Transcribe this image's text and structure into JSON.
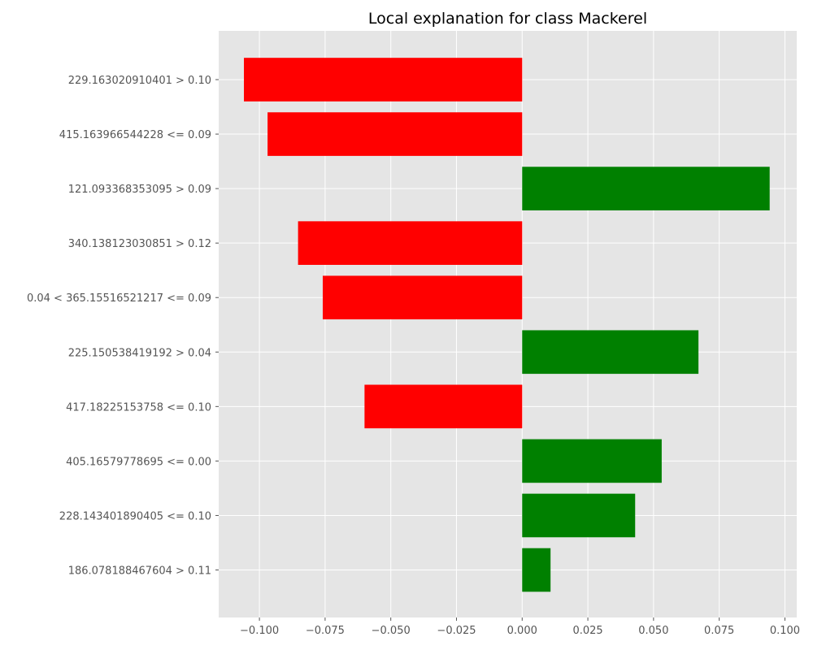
{
  "chart_data": {
    "type": "bar",
    "orientation": "horizontal",
    "title": "Local explanation for class Mackerel",
    "xlabel": "",
    "ylabel": "",
    "categories": [
      "229.163020910401 > 0.10",
      "415.163966544228 <= 0.09",
      "121.093368353095 > 0.09",
      "340.138123030851 > 0.12",
      "0.04 < 365.15516521217 <= 0.09",
      "225.150538419192 > 0.04",
      "417.18225153758 <= 0.10",
      "405.16579778695 <= 0.00",
      "228.143401890405 <= 0.10",
      "186.078188467604 > 0.11"
    ],
    "values": [
      -0.1059,
      -0.0969,
      0.0942,
      -0.0853,
      -0.0759,
      0.0671,
      -0.06,
      0.0531,
      0.043,
      0.0108
    ],
    "xlim": [
      -0.1155,
      0.1045
    ],
    "xticks": [
      -0.1,
      -0.075,
      -0.05,
      -0.025,
      0.0,
      0.025,
      0.05,
      0.075,
      0.1
    ],
    "xtick_labels": [
      "−0.100",
      "−0.075",
      "−0.050",
      "−0.025",
      "0.000",
      "0.025",
      "0.050",
      "0.075",
      "0.100"
    ],
    "grid": true,
    "colors": {
      "positive": "#008000",
      "negative": "#ff0000",
      "background": "#e5e5e5",
      "grid": "#ffffff",
      "tick_text": "#555555",
      "title_text": "#000000"
    }
  }
}
